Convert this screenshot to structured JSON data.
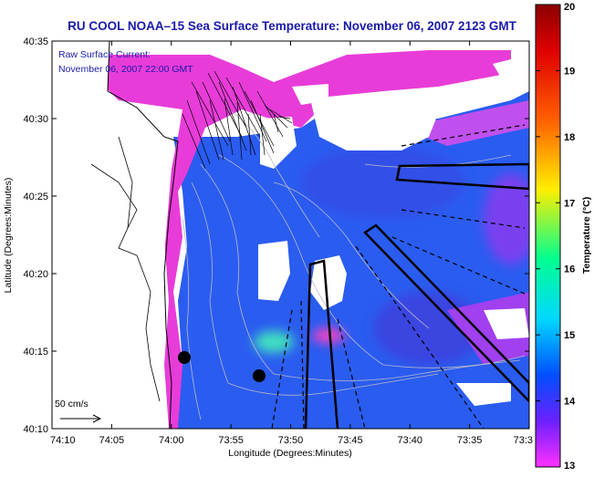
{
  "title": "RU COOL  NOAA–15  Sea Surface Temperature:  November 06, 2007 2123 GMT",
  "annotation": {
    "line1": "Raw Surface Current:",
    "line2": "November 06, 2007 22:00 GMT"
  },
  "scale_label": "50 cm/s",
  "axes": {
    "xlabel": "Longitude (Degrees:Minutes)",
    "ylabel": "Latitude (Degrees:Minutes)",
    "x_ticks": [
      "74:10",
      "74:05",
      "74:00",
      "73:55",
      "73:50",
      "73:45",
      "73:40",
      "73:35",
      "73:3"
    ],
    "y_ticks": [
      "40:35",
      "40:30",
      "40:25",
      "40:20",
      "40:15",
      "40:10"
    ]
  },
  "colorbar": {
    "label": "Temperature (°C)",
    "ticks": [
      "20",
      "19",
      "18",
      "17",
      "16",
      "15",
      "14",
      "13"
    ],
    "colors": [
      "#8b0000",
      "#ff0000",
      "#ff8000",
      "#ffff00",
      "#00ff80",
      "#00e0ff",
      "#0060ff",
      "#2020ff",
      "#b020ff",
      "#ff30ff"
    ]
  },
  "colors": {
    "title": "#1a1aaa",
    "water": "#2a5cf0",
    "warm_pink": "#e83cd8",
    "land": "#ffffff"
  }
}
